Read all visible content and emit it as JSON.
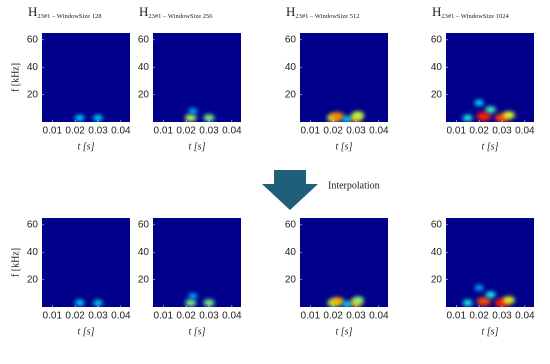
{
  "chart_data": [
    {
      "type": "spectrogram",
      "title": "H",
      "title_sub": "23#1 – WindowSize 128",
      "xlabel": "t [s]",
      "ylabel": "f [kHz]",
      "xlim": [
        0.0055,
        0.044
      ],
      "ylim": [
        0,
        65
      ],
      "xticks": [
        0.01,
        0.02,
        0.03,
        0.04
      ],
      "yticks": [
        20,
        40,
        60
      ],
      "background": "#00008b",
      "x": [
        0.022,
        0.03
      ],
      "y": [
        3,
        3
      ],
      "values": [
        0.35,
        0.35
      ]
    },
    {
      "type": "spectrogram",
      "title": "H",
      "title_sub": "23#1 – WindowSize 256",
      "xlabel": "t [s]",
      "xlim": [
        0.0055,
        0.044
      ],
      "ylim": [
        0,
        65
      ],
      "xticks": [
        0.01,
        0.02,
        0.03,
        0.04
      ],
      "yticks": [
        20,
        40,
        60
      ],
      "background": "#00008b",
      "x": [
        0.022,
        0.03,
        0.023
      ],
      "y": [
        3,
        3,
        8
      ],
      "values": [
        0.55,
        0.5,
        0.3
      ]
    },
    {
      "type": "spectrogram",
      "title": "H",
      "title_sub": "23#1 – WindowSize 512",
      "xlabel": "t [s]",
      "xlim": [
        0.0055,
        0.044
      ],
      "ylim": [
        0,
        65
      ],
      "xticks": [
        0.01,
        0.02,
        0.03,
        0.04
      ],
      "yticks": [
        20,
        40,
        60
      ],
      "background": "#00008b",
      "x": [
        0.02,
        0.022,
        0.03,
        0.031,
        0.026
      ],
      "y": [
        3,
        4,
        3,
        5,
        2
      ],
      "values": [
        0.6,
        0.75,
        0.7,
        0.55,
        0.35
      ]
    },
    {
      "type": "spectrogram",
      "title": "H",
      "title_sub": "23#1 – WindowSize 1024",
      "xlabel": "t [s]",
      "xlim": [
        0.0055,
        0.044
      ],
      "ylim": [
        0,
        65
      ],
      "xticks": [
        0.01,
        0.02,
        0.03,
        0.04
      ],
      "yticks": [
        20,
        40,
        60
      ],
      "background": "#00008b",
      "x": [
        0.015,
        0.022,
        0.03,
        0.025,
        0.02,
        0.033
      ],
      "y": [
        3,
        4,
        3,
        9,
        14,
        5
      ],
      "values": [
        0.4,
        0.85,
        0.8,
        0.45,
        0.35,
        0.6
      ]
    },
    {
      "type": "spectrogram",
      "xlabel": "t [s]",
      "ylabel": "f [kHz]",
      "xlim": [
        0.0055,
        0.044
      ],
      "ylim": [
        0,
        65
      ],
      "xticks": [
        0.01,
        0.02,
        0.03,
        0.04
      ],
      "yticks": [
        20,
        40,
        60
      ],
      "background": "#00008b",
      "x": [
        0.022,
        0.03
      ],
      "y": [
        3,
        3
      ],
      "values": [
        0.35,
        0.35
      ]
    },
    {
      "type": "spectrogram",
      "xlabel": "t [s]",
      "xlim": [
        0.0055,
        0.044
      ],
      "ylim": [
        0,
        65
      ],
      "xticks": [
        0.01,
        0.02,
        0.03,
        0.04
      ],
      "yticks": [
        20,
        40,
        60
      ],
      "background": "#00008b",
      "x": [
        0.022,
        0.03,
        0.023
      ],
      "y": [
        3,
        3,
        8
      ],
      "values": [
        0.5,
        0.5,
        0.3
      ]
    },
    {
      "type": "spectrogram",
      "xlabel": "t [s]",
      "xlim": [
        0.0055,
        0.044
      ],
      "ylim": [
        0,
        65
      ],
      "xticks": [
        0.01,
        0.02,
        0.03,
        0.04
      ],
      "yticks": [
        20,
        40,
        60
      ],
      "background": "#00008b",
      "x": [
        0.02,
        0.022,
        0.03,
        0.031,
        0.026
      ],
      "y": [
        3,
        4,
        3,
        5,
        2
      ],
      "values": [
        0.55,
        0.7,
        0.7,
        0.5,
        0.35
      ]
    },
    {
      "type": "spectrogram",
      "xlabel": "t [s]",
      "xlim": [
        0.0055,
        0.044
      ],
      "ylim": [
        0,
        65
      ],
      "xticks": [
        0.01,
        0.02,
        0.03,
        0.04
      ],
      "yticks": [
        20,
        40,
        60
      ],
      "background": "#00008b",
      "x": [
        0.015,
        0.022,
        0.03,
        0.025,
        0.02,
        0.033
      ],
      "y": [
        3,
        4,
        3,
        9,
        14,
        5
      ],
      "values": [
        0.4,
        0.8,
        0.85,
        0.4,
        0.3,
        0.6
      ]
    }
  ],
  "annotation": "Interpolation"
}
